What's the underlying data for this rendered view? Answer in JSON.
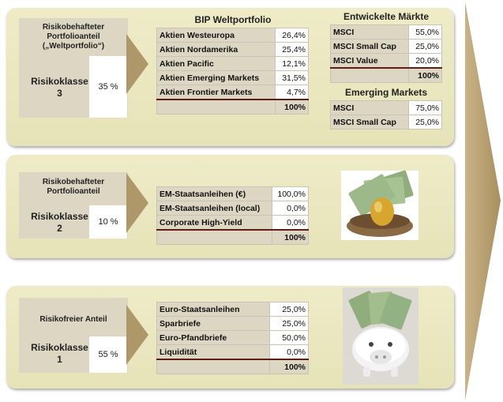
{
  "big_arrow_color": "#ae9768",
  "panels": [
    {
      "label_title_lines": [
        "Risikobehafteter",
        "Portfolioanteil",
        "(„Weltportfolio“)"
      ],
      "risk_lines": [
        "Risikoklasse",
        "3"
      ],
      "risk_value": "35 %",
      "table_title": "BIP Weltportfolio",
      "rows": [
        {
          "name": "Aktien Westeuropa",
          "value": "26,4%"
        },
        {
          "name": "Aktien Nordamerika",
          "value": "25,4%"
        },
        {
          "name": "Aktien Pacific",
          "value": "12,1%"
        },
        {
          "name": "Aktien Emerging Markets",
          "value": "31,5%"
        },
        {
          "name": "Aktien Frontier Markets",
          "value": "4,7%"
        }
      ],
      "total": "100%",
      "sub_tables": [
        {
          "title": "Entwickelte Märkte",
          "rows": [
            {
              "name": "MSCI",
              "value": "55,0%"
            },
            {
              "name": "MSCI Small Cap",
              "value": "25,0%"
            },
            {
              "name": "MSCI Value",
              "value": "20,0%"
            }
          ],
          "total": "100%"
        },
        {
          "title": "Emerging Markets",
          "rows": [
            {
              "name": "MSCI",
              "value": "75,0%"
            },
            {
              "name": "MSCI Small Cap",
              "value": "25,0%"
            }
          ]
        }
      ]
    },
    {
      "label_title_lines": [
        "Risikobehafteter",
        "Portfolioanteil"
      ],
      "risk_lines": [
        "Risikoklasse",
        "2"
      ],
      "risk_value": "10 %",
      "rows": [
        {
          "name": "EM-Staatsanleihen (€)",
          "value": "100,0%"
        },
        {
          "name": "EM-Staatsanleihen (local)",
          "value": "0,0%"
        },
        {
          "name": "Corporate High-Yield",
          "value": "0,0%"
        }
      ],
      "total": "100%",
      "image": "nest-egg-money-image"
    },
    {
      "label_title_lines": [
        "Risikofreier Anteil"
      ],
      "risk_lines": [
        "Risikoklasse",
        "1"
      ],
      "risk_value": "55 %",
      "rows": [
        {
          "name": "Euro-Staatsanleihen",
          "value": "25,0%"
        },
        {
          "name": "Sparbriefe",
          "value": "25,0%"
        },
        {
          "name": "Euro-Pfandbriefe",
          "value": "50,0%"
        },
        {
          "name": "Liquidität",
          "value": "0,0%"
        }
      ],
      "total": "100%",
      "image": "piggy-bank-money-image"
    }
  ]
}
